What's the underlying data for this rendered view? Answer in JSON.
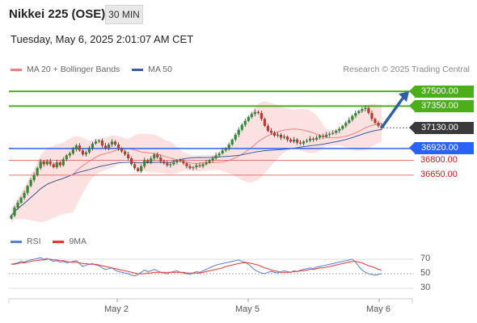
{
  "header": {
    "title": "Nikkei 225 (OSE)",
    "timeframe": "30 MIN",
    "datetime": "Tuesday, May 6, 2025 2:01:07 AM CET"
  },
  "legend": {
    "bb_label": "MA 20 + Bollinger Bands",
    "ma50_label": "MA 50",
    "copyright": "Research © 2025 Trading Central",
    "rsi_label": "RSI",
    "rsi_ma_label": "9MA"
  },
  "colors": {
    "up": "#2e8b2e",
    "down": "#c0392b",
    "bb_fill": "#fbd9d9",
    "ma20": "#f08080",
    "ma50": "#3b5ba8",
    "resistance": "#4caf1a",
    "support": "#2962ff",
    "pivot": "#e57373",
    "arrow": "#2f5fa7",
    "rsi": "#5b7fd6",
    "rsi_ma": "#e53935"
  },
  "chart_data": {
    "type": "candlestick",
    "ylim": [
      36100,
      37640
    ],
    "x_ticks": [
      "May 2",
      "May 5",
      "May 6"
    ],
    "levels": [
      {
        "value": 37500,
        "label": "37500.00",
        "style": "resistance"
      },
      {
        "value": 37350,
        "label": "37350.00",
        "style": "resistance"
      },
      {
        "value": 37130,
        "label": "37130.00",
        "style": "last"
      },
      {
        "value": 36920,
        "label": "36920.00",
        "style": "support"
      },
      {
        "value": 36800,
        "label": "36800.00",
        "style": "pivot"
      },
      {
        "value": 36650,
        "label": "36650.00",
        "style": "pivot"
      }
    ],
    "close": [
      36240,
      36320,
      36370,
      36420,
      36470,
      36540,
      36600,
      36650,
      36720,
      36790,
      36760,
      36790,
      36760,
      36730,
      36780,
      36750,
      36810,
      36850,
      36870,
      36910,
      36950,
      36900,
      36860,
      36880,
      36920,
      36970,
      36990,
      37000,
      36950,
      36920,
      36960,
      36990,
      36960,
      36920,
      36890,
      36860,
      36820,
      36760,
      36720,
      36690,
      36740,
      36800,
      36780,
      36820,
      36860,
      36830,
      36790,
      36770,
      36750,
      36760,
      36780,
      36800,
      36790,
      36770,
      36740,
      36720,
      36730,
      36750,
      36740,
      36760,
      36780,
      36800,
      36820,
      36850,
      36870,
      36900,
      36920,
      36960,
      37010,
      37060,
      37110,
      37160,
      37200,
      37240,
      37270,
      37290,
      37280,
      37220,
      37150,
      37100,
      37080,
      37050,
      37060,
      37030,
      37040,
      37010,
      36990,
      37010,
      36980,
      36970,
      36990,
      37000,
      37020,
      37010,
      37030,
      37050,
      37040,
      37060,
      37070,
      37080,
      37100,
      37120,
      37150,
      37180,
      37210,
      37250,
      37280,
      37300,
      37320,
      37330,
      37280,
      37220,
      37180,
      37150,
      37130
    ],
    "rsi": {
      "ylim": [
        20,
        80
      ],
      "ticks": [
        70,
        50,
        30
      ],
      "values": [
        63,
        64,
        65,
        67,
        66,
        68,
        69,
        70,
        71,
        72,
        70,
        71,
        69,
        67,
        68,
        66,
        67,
        65,
        66,
        67,
        68,
        64,
        60,
        62,
        63,
        64,
        62,
        61,
        58,
        56,
        57,
        58,
        55,
        53,
        52,
        51,
        50,
        48,
        47,
        49,
        52,
        55,
        53,
        54,
        56,
        54,
        52,
        51,
        50,
        52,
        53,
        54,
        52,
        51,
        50,
        49,
        51,
        53,
        52,
        54,
        56,
        58,
        60,
        62,
        63,
        64,
        65,
        66,
        67,
        68,
        69,
        67,
        66,
        63,
        59,
        55,
        53,
        51,
        50,
        52,
        53,
        52,
        51,
        53,
        54,
        53,
        52,
        54,
        53,
        55,
        56,
        57,
        58,
        57,
        59,
        60,
        61,
        62,
        63,
        64,
        65,
        66,
        67,
        68,
        69,
        70,
        66,
        60,
        55,
        52,
        50,
        49,
        48,
        49,
        50
      ],
      "ma": [
        63,
        63,
        64,
        65,
        65,
        66,
        67,
        68,
        68,
        69,
        69,
        70,
        70,
        69,
        69,
        68,
        68,
        67,
        66,
        66,
        66,
        65,
        64,
        64,
        63,
        63,
        63,
        62,
        61,
        60,
        59,
        58,
        57,
        56,
        55,
        54,
        53,
        52,
        51,
        50,
        50,
        50,
        51,
        51,
        52,
        52,
        52,
        52,
        52,
        52,
        52,
        52,
        52,
        52,
        51,
        51,
        51,
        51,
        51,
        52,
        53,
        54,
        55,
        56,
        57,
        58,
        60,
        61,
        62,
        63,
        64,
        65,
        65,
        65,
        64,
        63,
        62,
        60,
        58,
        57,
        55,
        54,
        53,
        52,
        52,
        52,
        52,
        53,
        53,
        54,
        54,
        55,
        56,
        56,
        57,
        58,
        58,
        59,
        60,
        61,
        62,
        63,
        64,
        65,
        66,
        67,
        67,
        66,
        65,
        63,
        61,
        60,
        58,
        56,
        55
      ]
    }
  }
}
